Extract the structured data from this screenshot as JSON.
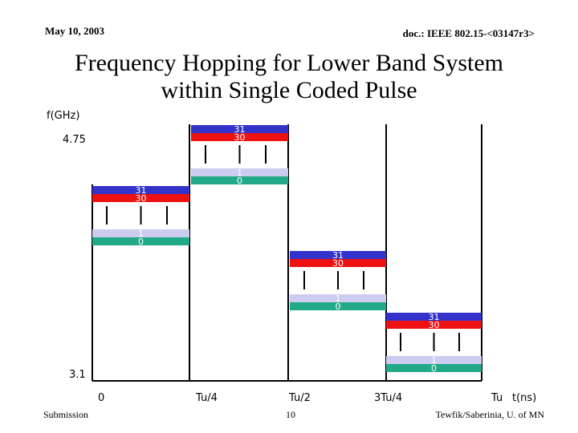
{
  "header": {
    "date": "May 10, 2003",
    "doc": "doc.: IEEE 802.15-<03147r3>"
  },
  "title": {
    "line1": "Frequency Hopping for Lower Band System",
    "line2": "within Single Coded Pulse"
  },
  "axis": {
    "y_label": "f(GHz)",
    "y_top": "4.75",
    "y_bottom": "3.1",
    "x_ticks": [
      "0",
      "Tu/4",
      "Tu/2",
      "3Tu/4",
      "Tu"
    ],
    "x_unit": "t(ns)"
  },
  "bars": {
    "top_index": "31",
    "second_index": "30",
    "low_index": "1",
    "bottom_index": "0"
  },
  "colors": {
    "blue": "#3333cc",
    "red": "#ee1111",
    "lavender": "#ccccf0",
    "green": "#22aa88",
    "line": "#000000"
  },
  "footer": {
    "left": "Submission",
    "center": "10",
    "right": "Tewfik/Saberinia, U. of MN"
  }
}
